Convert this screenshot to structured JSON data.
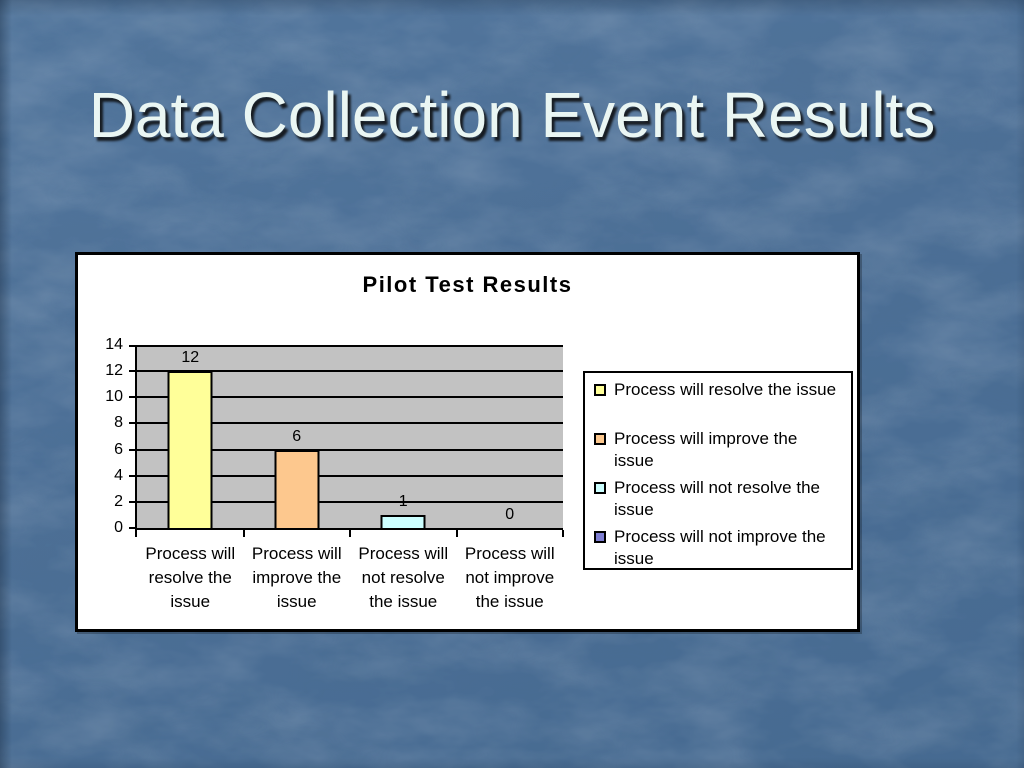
{
  "slide": {
    "title": "Data Collection Event Results",
    "background_color": "#4c6f96",
    "title_color": "#eaf6f3"
  },
  "chart_data": {
    "type": "bar",
    "title": "Pilot Test Results",
    "categories": [
      "Process will resolve the issue",
      "Process will improve the issue",
      "Process will not resolve the issue",
      "Process will not improve the issue"
    ],
    "values": [
      12,
      6,
      1,
      0
    ],
    "value_labels": [
      "12",
      "6",
      "1",
      "0"
    ],
    "bar_colors": [
      "#ffff99",
      "#fdc88e",
      "#ccffff",
      "#7e7ed2"
    ],
    "y_ticks": [
      14,
      12,
      10,
      8,
      6,
      4,
      2,
      0
    ],
    "ylim": [
      0,
      14
    ],
    "xlabel": "",
    "ylabel": "",
    "grid": "horizontal",
    "plot_background": "#c2c2c2",
    "gridline_color": "#000000",
    "legend_position": "right",
    "legend_items": [
      {
        "label": "Process will resolve the issue",
        "color": "#ffff99"
      },
      {
        "label": "Process will improve the issue",
        "color": "#fdc88e"
      },
      {
        "label": "Process will not resolve the issue",
        "color": "#ccffff"
      },
      {
        "label": "Process will not improve the issue",
        "color": "#7e7ed2"
      }
    ]
  }
}
